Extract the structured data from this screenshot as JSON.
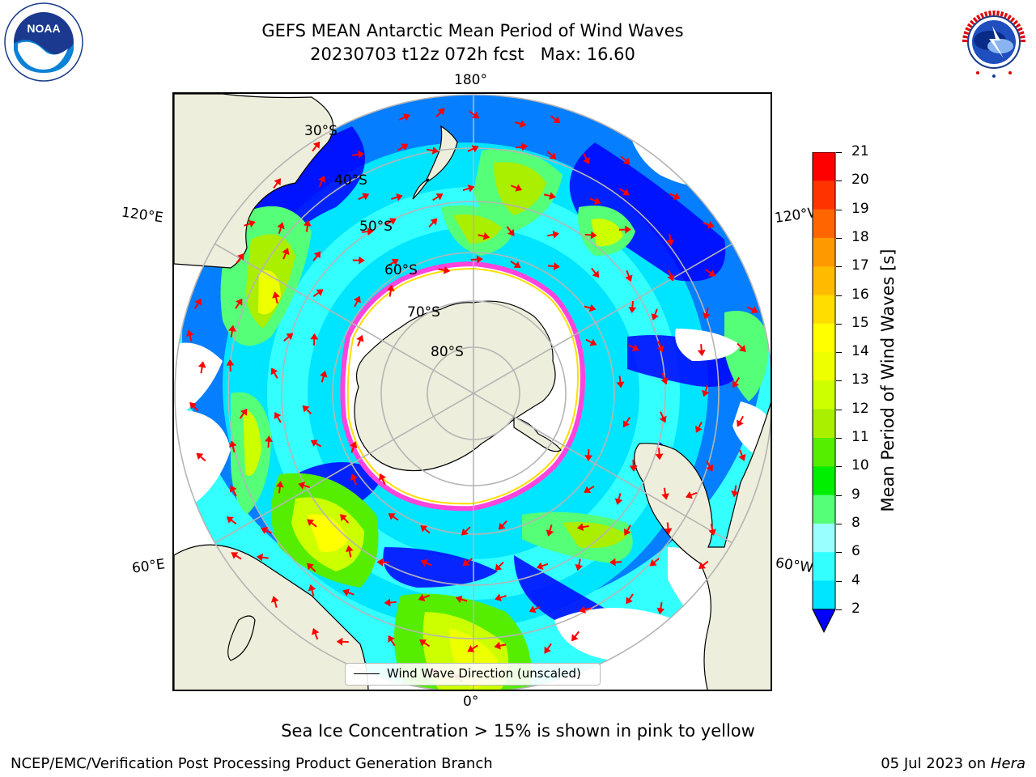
{
  "header": {
    "title": "GEFS MEAN Antarctic Mean Period of Wind Waves",
    "subtitle": "20230703 t12z 072h fcst   Max: 16.60"
  },
  "logos": {
    "noaa": {
      "text": "NOAA",
      "ring_text": "NATIONAL OCEANIC AND ATMOSPHERIC ADMINISTRATION · U.S. DEPARTMENT OF COMMERCE"
    },
    "nws": {
      "ring_text": "NATIONAL WEATHER SERVICE"
    }
  },
  "map": {
    "projection": "south-polar-stereographic",
    "longitude_labels": {
      "top": "180°",
      "bottom": "0°",
      "left_upper": "120°E",
      "left_lower": "60°E",
      "right_upper": "120°W",
      "right_lower": "60°W"
    },
    "latitude_labels": [
      "30°S",
      "40°S",
      "50°S",
      "60°S",
      "70°S",
      "80°S"
    ],
    "colors": {
      "land": "#eeeedc",
      "ice": "#ffffff",
      "sea_ice_edge": "#ff44dd",
      "vectors": "#ff0000",
      "graticule": "#b5b5b5"
    },
    "legend": {
      "label": "Wind Wave Direction (unscaled)"
    }
  },
  "colorbar": {
    "label": "Mean Period of Wind Waves [s]",
    "ticks": [
      "2",
      "4",
      "6",
      "8",
      "9",
      "10",
      "11",
      "12",
      "13",
      "14",
      "15",
      "16",
      "17",
      "18",
      "19",
      "20",
      "21"
    ],
    "colors": [
      "#0070ff",
      "#00e5ff",
      "#33ffff",
      "#99ffff",
      "#55ff77",
      "#00ee00",
      "#55ee00",
      "#aaee00",
      "#ccff00",
      "#eeff00",
      "#ffff00",
      "#ffdd00",
      "#ffbb00",
      "#ff9900",
      "#ff6600",
      "#ff3300",
      "#ff0000"
    ],
    "under_color": "#0000ff"
  },
  "note": "Sea Ice Concentration > 15% is shown in pink to yellow",
  "footer": {
    "left": "NCEP/EMC/Verification Post Processing Product Generation Branch",
    "right_date": "05 Jul 2023 on ",
    "right_host": "Hera"
  }
}
